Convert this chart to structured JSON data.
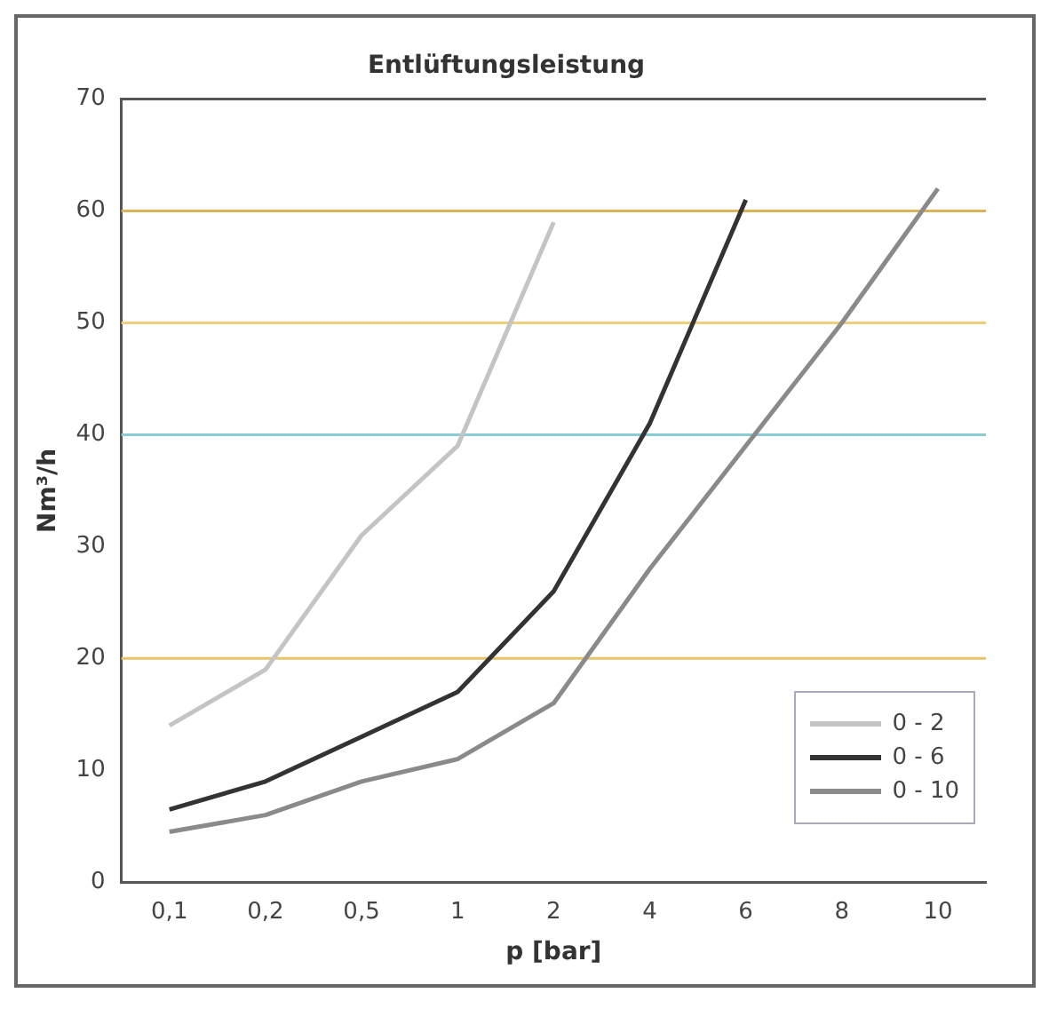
{
  "chart_data": {
    "type": "line",
    "title": "Entlüftungsleistung",
    "xlabel": "p [bar]",
    "ylabel": "Nm³/h",
    "categories": [
      "0,1",
      "0,2",
      "0,5",
      "1",
      "2",
      "4",
      "6",
      "8",
      "10"
    ],
    "series": [
      {
        "name": "0 - 2",
        "color": "#c4c4c4",
        "values": [
          14,
          19,
          31,
          39,
          59,
          null,
          null,
          null,
          null
        ]
      },
      {
        "name": "0 - 6",
        "color": "#333333",
        "values": [
          6.5,
          9,
          13,
          17,
          26,
          41,
          61,
          null,
          null
        ]
      },
      {
        "name": "0 - 10",
        "color": "#8a8a8a",
        "values": [
          4.5,
          6,
          9,
          11,
          16,
          28,
          39,
          50,
          62
        ]
      }
    ],
    "ylim": [
      0,
      70
    ],
    "yticks": [
      0,
      10,
      20,
      30,
      40,
      50,
      60,
      70
    ],
    "ref_lines": [
      {
        "axis": "y",
        "value": 20,
        "color": "#e6c46a"
      },
      {
        "axis": "y",
        "value": 40,
        "color": "#8ccbd2"
      },
      {
        "axis": "y",
        "value": 50,
        "color": "#efcf7a"
      },
      {
        "axis": "y",
        "value": 60,
        "color": "#d9b45a"
      },
      {
        "axis": "y",
        "value": 70,
        "color": "#555555"
      }
    ],
    "legend": "bottom right",
    "marker": "none",
    "line_style": "solid"
  }
}
